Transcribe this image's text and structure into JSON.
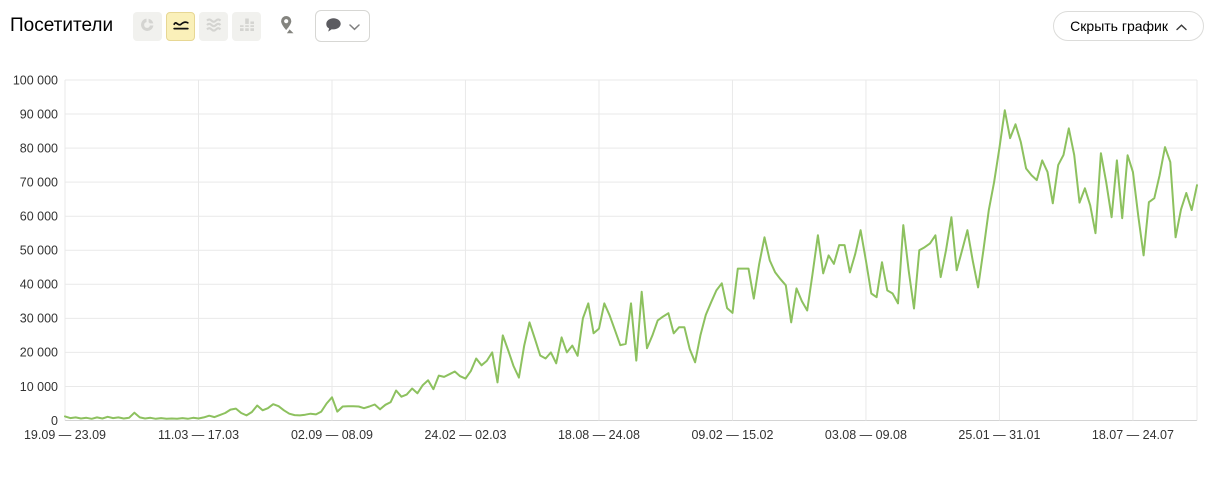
{
  "header": {
    "title": "Посетители",
    "toolbar": {
      "chart_types": [
        {
          "name": "pie",
          "active": false
        },
        {
          "name": "line",
          "active": true
        },
        {
          "name": "stacked-area",
          "active": false
        },
        {
          "name": "columns",
          "active": false
        }
      ],
      "map_button_icon": "map-pin-icon",
      "annotations_dropdown": {
        "icon": "speech-bubble-icon",
        "chevron": "down"
      }
    },
    "hide_chart_button": {
      "label": "Скрыть график",
      "chevron": "up"
    }
  },
  "appearance": {
    "active_button_bg": "#faf0b9",
    "active_button_border": "#e7d794",
    "inactive_button_bg": "#f1f1ee",
    "inactive_glyph": "#d4d4d1",
    "grid_color": "#e9e9e9",
    "axis_label_color": "#333333",
    "line_color": "#8dc15f"
  },
  "chart_data": {
    "type": "line",
    "title": "Посетители",
    "ylabel": "",
    "xlabel": "",
    "ylim": [
      0,
      100000
    ],
    "grid": true,
    "legend": "none",
    "y_ticks": [
      0,
      10000,
      20000,
      30000,
      40000,
      50000,
      60000,
      70000,
      80000,
      90000,
      100000
    ],
    "y_tick_labels": [
      "0",
      "10 000",
      "20 000",
      "30 000",
      "40 000",
      "50 000",
      "60 000",
      "70 000",
      "80 000",
      "90 000",
      "100 000"
    ],
    "x_tick_labels": [
      "19.09 — 23.09",
      "11.03 — 17.03",
      "02.09 — 08.09",
      "24.02 — 02.03",
      "18.08 — 24.08",
      "09.02 — 15.02",
      "03.08 — 09.08",
      "25.01 — 31.01",
      "18.07 — 24.07"
    ],
    "x_ticks_every_n_points": 25,
    "x_unit": "week-range",
    "series": [
      {
        "name": "Посетители",
        "color": "#8dc15f",
        "values": [
          1200,
          700,
          900,
          600,
          800,
          500,
          900,
          600,
          1100,
          700,
          900,
          600,
          800,
          2300,
          900,
          600,
          800,
          500,
          700,
          500,
          600,
          500,
          700,
          500,
          800,
          600,
          900,
          1400,
          1000,
          1600,
          2200,
          3200,
          3500,
          2200,
          1500,
          2500,
          4400,
          3000,
          3600,
          4800,
          4200,
          3000,
          2000,
          1600,
          1500,
          1700,
          2000,
          1800,
          2600,
          5000,
          6800,
          2600,
          4100,
          4200,
          4200,
          4100,
          3600,
          4100,
          4700,
          3300,
          4600,
          5400,
          8800,
          7000,
          7600,
          9400,
          8000,
          10400,
          11800,
          9200,
          13200,
          12800,
          13600,
          14400,
          13000,
          12300,
          14500,
          18200,
          16200,
          17500,
          20000,
          11200,
          25000,
          20600,
          16000,
          12600,
          22000,
          28800,
          24000,
          19100,
          18200,
          20000,
          16800,
          24400,
          20000,
          22000,
          19000,
          30000,
          34400,
          25600,
          27000,
          34400,
          30900,
          26500,
          22100,
          22500,
          34400,
          17600,
          37800,
          21200,
          25000,
          29400,
          30500,
          31500,
          25600,
          27400,
          27400,
          21000,
          17100,
          25000,
          31000,
          34700,
          38200,
          40300,
          33000,
          31600,
          44600,
          44600,
          44600,
          35800,
          46000,
          53800,
          47000,
          43500,
          41500,
          39700,
          28800,
          38800,
          35000,
          32300,
          43000,
          54400,
          43200,
          48500,
          46000,
          51500,
          51500,
          43500,
          49000,
          55900,
          47000,
          37300,
          36200,
          46500,
          38200,
          37300,
          34400,
          57400,
          44000,
          32900,
          50000,
          50900,
          52000,
          54400,
          42100,
          50000,
          59700,
          44100,
          50000,
          55900,
          47000,
          39100,
          50000,
          61800,
          70000,
          80000,
          91100,
          82900,
          87000,
          81800,
          74000,
          72000,
          70600,
          76400,
          73000,
          63800,
          75000,
          78000,
          85800,
          78000,
          64000,
          68200,
          63200,
          55000,
          78500,
          70000,
          59700,
          76400,
          59400,
          77900,
          73000,
          60000,
          48500,
          64100,
          65300,
          72000,
          80300,
          75900,
          53800,
          62000,
          66800,
          61800,
          69100
        ]
      }
    ]
  }
}
